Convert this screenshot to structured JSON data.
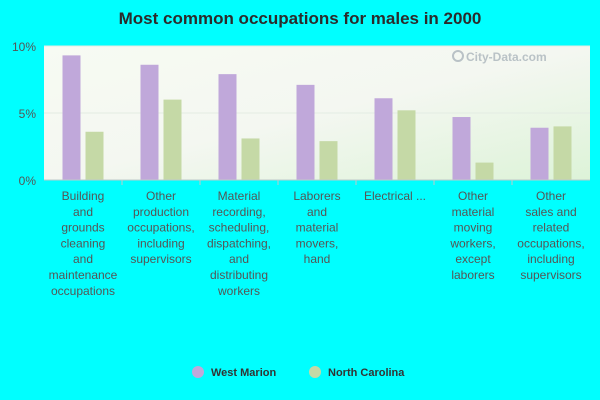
{
  "chart_data": {
    "type": "bar",
    "title": "Most common occupations for males in 2000",
    "categories": [
      [
        "Building",
        "and",
        "grounds",
        "cleaning",
        "and",
        "maintenance",
        "occupations"
      ],
      [
        "Other",
        "production",
        "occupations,",
        "including",
        "supervisors"
      ],
      [
        "Material",
        "recording,",
        "scheduling,",
        "dispatching,",
        "and",
        "distributing",
        "workers"
      ],
      [
        "Laborers",
        "and",
        "material",
        "movers,",
        "hand"
      ],
      [
        "Electrical ..."
      ],
      [
        "Other",
        "material",
        "moving",
        "workers,",
        "except",
        "laborers"
      ],
      [
        "Other",
        "sales and",
        "related",
        "occupations,",
        "including",
        "supervisors"
      ]
    ],
    "series": [
      {
        "name": "West Marion",
        "color": "#c0a8da",
        "values": [
          9.3,
          8.6,
          7.9,
          7.1,
          6.1,
          4.7,
          3.9
        ]
      },
      {
        "name": "North Carolina",
        "color": "#c5d9a6",
        "values": [
          3.6,
          6.0,
          3.1,
          2.9,
          5.2,
          1.3,
          4.0
        ]
      }
    ],
    "yticks": [
      "0%",
      "5%",
      "10%"
    ],
    "ytick_values": [
      0,
      5,
      10
    ],
    "ylim": [
      0,
      10
    ],
    "legend_position": "bottom",
    "watermark": "City-Data.com"
  }
}
